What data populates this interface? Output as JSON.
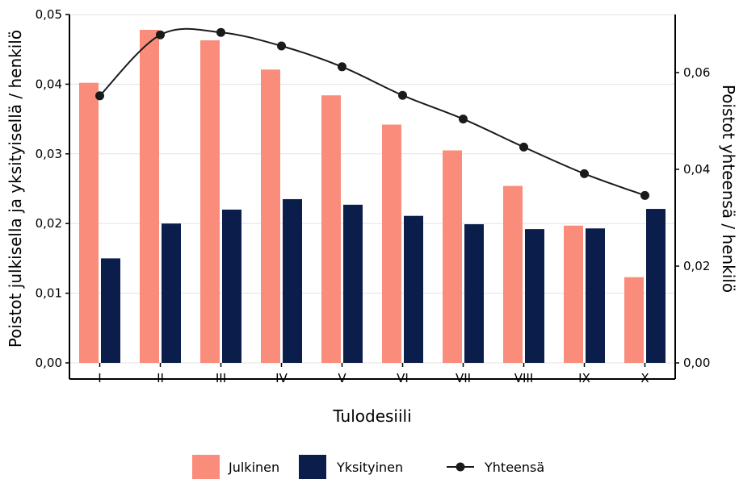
{
  "chart_data": {
    "type": "bar",
    "xlabel": "Tulodesiili",
    "ylabel": "Poistot julkisella ja yksityisellä / henkilö",
    "y2label": "Poistot yhteensä / henkilö",
    "categories": [
      "I",
      "II",
      "III",
      "IV",
      "V",
      "VI",
      "VII",
      "VIII",
      "IX",
      "X"
    ],
    "ylim": [
      0,
      0.05
    ],
    "y2lim": [
      0,
      0.072
    ],
    "yticks": [
      "0,00",
      "0,01",
      "0,02",
      "0,03",
      "0,04",
      "0,05"
    ],
    "y2ticks": [
      "0,00",
      "0,02",
      "0,04",
      "0,06"
    ],
    "grid": "horizontal",
    "legend_position": "bottom",
    "series": [
      {
        "name": "Julkinen",
        "type": "bar",
        "axis": "left",
        "color": "#FA8C7C",
        "values": [
          0.0402,
          0.0478,
          0.0463,
          0.0421,
          0.0384,
          0.0342,
          0.0305,
          0.0254,
          0.0197,
          0.0123
        ]
      },
      {
        "name": "Yksityinen",
        "type": "bar",
        "axis": "left",
        "color": "#0B1E4B",
        "values": [
          0.015,
          0.02,
          0.022,
          0.0235,
          0.0227,
          0.0211,
          0.0199,
          0.0192,
          0.0193,
          0.0221
        ]
      },
      {
        "name": "Yhteensä",
        "type": "line",
        "axis": "right",
        "color": "#1A1A1A",
        "values": [
          0.0552,
          0.0678,
          0.0683,
          0.0655,
          0.0612,
          0.0553,
          0.0504,
          0.0446,
          0.0391,
          0.0346
        ]
      }
    ]
  }
}
